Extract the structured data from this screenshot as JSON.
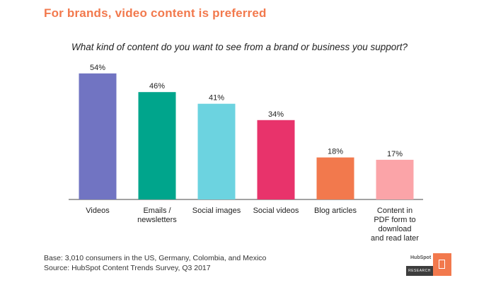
{
  "headline": "For brands, video content is preferred",
  "question": "What kind of content do you want to see from a brand or business you support?",
  "footnote": {
    "base": "Base: 3,010 consumers in the US, Germany, Colombia, and Mexico",
    "source": "Source: HubSpot Content Trends Survey, Q3 2017"
  },
  "logo": {
    "brand": "HubSpot",
    "tag": "RESEARCH"
  },
  "chart_data": {
    "type": "bar",
    "categories": [
      [
        "Videos"
      ],
      [
        "Emails /",
        "newsletters"
      ],
      [
        "Social images"
      ],
      [
        "Social videos"
      ],
      [
        "Blog articles"
      ],
      [
        "Content in",
        "PDF form to",
        "download",
        "and read later"
      ]
    ],
    "values": [
      54,
      46,
      41,
      34,
      18,
      17
    ],
    "labels": [
      "54%",
      "46%",
      "41%",
      "34%",
      "18%",
      "17%"
    ],
    "colors": [
      "#7174c2",
      "#00a58c",
      "#6cd3e0",
      "#e8336b",
      "#f2794d",
      "#fba4a8"
    ],
    "ylim": [
      0,
      60
    ]
  }
}
